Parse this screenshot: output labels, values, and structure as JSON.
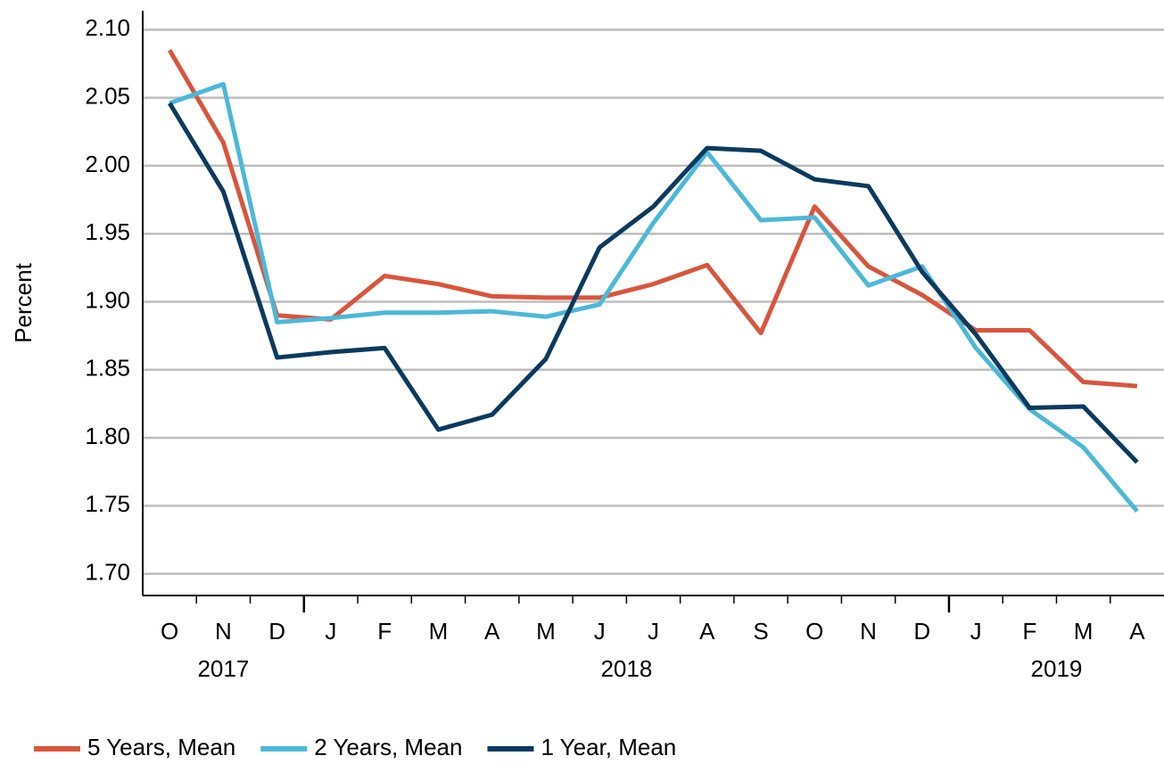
{
  "chart_data": {
    "type": "line",
    "y_label": "Percent",
    "groups": [
      {
        "label": "2017",
        "categories": [
          "O",
          "N",
          "D"
        ]
      },
      {
        "label": "2018",
        "categories": [
          "J",
          "F",
          "M",
          "A",
          "M",
          "J",
          "J",
          "A",
          "S",
          "O",
          "N",
          "D"
        ]
      },
      {
        "label": "2019",
        "categories": [
          "J",
          "F",
          "M",
          "A"
        ]
      }
    ],
    "series": [
      {
        "name": "5 Years, Mean",
        "color": "#d9553c",
        "values": [
          2.085,
          2.017,
          1.89,
          1.887,
          1.919,
          1.913,
          1.904,
          1.903,
          1.903,
          1.913,
          1.927,
          1.877,
          1.97,
          1.926,
          1.905,
          1.879,
          1.879,
          1.841,
          1.838
        ]
      },
      {
        "name": "2 Years, Mean",
        "color": "#4cb8d8",
        "values": [
          2.046,
          2.06,
          1.885,
          1.888,
          1.892,
          1.892,
          1.893,
          1.889,
          1.898,
          1.958,
          2.01,
          1.96,
          1.962,
          1.912,
          1.926,
          1.866,
          1.821,
          1.793,
          1.746
        ]
      },
      {
        "name": "1 Year, Mean",
        "color": "#0b3a5e",
        "values": [
          2.046,
          1.981,
          1.859,
          1.863,
          1.866,
          1.806,
          1.817,
          1.858,
          1.94,
          1.97,
          2.013,
          2.011,
          1.99,
          1.985,
          1.922,
          1.876,
          1.822,
          1.823,
          1.782
        ]
      }
    ],
    "ylim": [
      1.686,
      2.114
    ],
    "yticks": [
      {
        "value": 1.7,
        "label": "1.70"
      },
      {
        "value": 1.75,
        "label": "1.75"
      },
      {
        "value": 1.8,
        "label": "1.80"
      },
      {
        "value": 1.85,
        "label": "1.85"
      },
      {
        "value": 1.9,
        "label": "1.90"
      },
      {
        "value": 1.95,
        "label": "1.95"
      },
      {
        "value": 2.0,
        "label": "2.00"
      },
      {
        "value": 2.05,
        "label": "2.05"
      },
      {
        "value": 2.1,
        "label": "2.10"
      }
    ],
    "grid": true,
    "legend": "bottom"
  }
}
